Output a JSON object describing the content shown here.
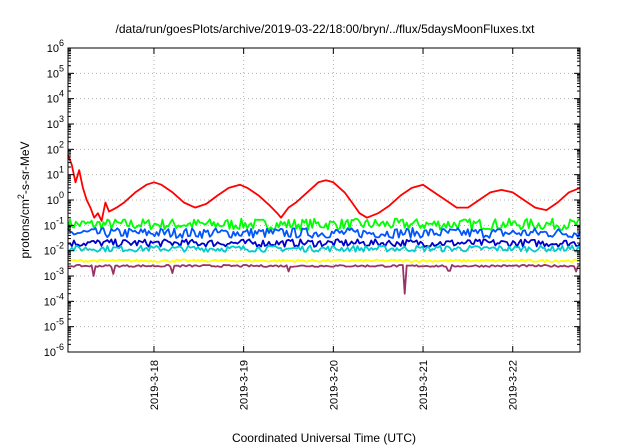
{
  "chart_data": {
    "type": "line",
    "title": "/data/run/goesPlots/archive/2019-03-22/18:00/bryn/../flux/5daysMoonFluxes.txt",
    "xlabel": "Coordinated Universal Time (UTC)",
    "ylabel_parts": {
      "pre": "protons/cm",
      "sup": "2",
      "post": "-s-sr-MeV"
    },
    "y_scale": "log",
    "ylim": [
      1e-06,
      1000000.0
    ],
    "y_ticks": [
      {
        "base": "10",
        "exp": "-6",
        "value": 1e-06
      },
      {
        "base": "10",
        "exp": "-5",
        "value": 1e-05
      },
      {
        "base": "10",
        "exp": "-4",
        "value": 0.0001
      },
      {
        "base": "10",
        "exp": "-3",
        "value": 0.001
      },
      {
        "base": "10",
        "exp": "-2",
        "value": 0.01
      },
      {
        "base": "10",
        "exp": "-1",
        "value": 0.1
      },
      {
        "base": "10",
        "exp": "0",
        "value": 1
      },
      {
        "base": "10",
        "exp": "1",
        "value": 10
      },
      {
        "base": "10",
        "exp": "2",
        "value": 100
      },
      {
        "base": "10",
        "exp": "3",
        "value": 1000
      },
      {
        "base": "10",
        "exp": "4",
        "value": 10000
      },
      {
        "base": "10",
        "exp": "5",
        "value": 100000
      },
      {
        "base": "10",
        "exp": "6",
        "value": 1000000
      }
    ],
    "xlim": [
      "2019-03-17T01:00",
      "2019-03-22T18:00"
    ],
    "x_ticks": [
      {
        "label": "2019-3-18",
        "value": "2019-03-18T00:00"
      },
      {
        "label": "2019-3-19",
        "value": "2019-03-19T00:00"
      },
      {
        "label": "2019-3-20",
        "value": "2019-03-20T00:00"
      },
      {
        "label": "2019-3-21",
        "value": "2019-03-21T00:00"
      },
      {
        "label": "2019-3-22",
        "value": "2019-03-22T00:00"
      }
    ],
    "grid": true,
    "series": [
      {
        "color": "#ff0000",
        "points": [
          [
            "2019-03-17T01:00",
            60
          ],
          [
            "2019-03-17T02:00",
            25
          ],
          [
            "2019-03-17T03:00",
            5
          ],
          [
            "2019-03-17T04:00",
            15
          ],
          [
            "2019-03-17T05:00",
            3
          ],
          [
            "2019-03-17T06:00",
            1
          ],
          [
            "2019-03-17T07:00",
            0.5
          ],
          [
            "2019-03-17T08:00",
            0.2
          ],
          [
            "2019-03-17T09:00",
            0.3
          ],
          [
            "2019-03-17T10:00",
            0.15
          ],
          [
            "2019-03-17T11:00",
            0.8
          ],
          [
            "2019-03-17T12:00",
            0.35
          ],
          [
            "2019-03-17T14:00",
            0.5
          ],
          [
            "2019-03-17T16:00",
            0.8
          ],
          [
            "2019-03-17T19:00",
            2
          ],
          [
            "2019-03-17T22:00",
            4
          ],
          [
            "2019-03-18T00:00",
            5
          ],
          [
            "2019-03-18T02:00",
            4
          ],
          [
            "2019-03-18T05:00",
            2
          ],
          [
            "2019-03-18T08:00",
            0.8
          ],
          [
            "2019-03-18T11:00",
            0.5
          ],
          [
            "2019-03-18T14:00",
            0.7
          ],
          [
            "2019-03-18T17:00",
            1.5
          ],
          [
            "2019-03-18T20:00",
            3
          ],
          [
            "2019-03-18T23:00",
            4
          ],
          [
            "2019-03-19T01:00",
            3
          ],
          [
            "2019-03-19T04:00",
            1.5
          ],
          [
            "2019-03-19T07:00",
            0.6
          ],
          [
            "2019-03-19T09:00",
            0.3
          ],
          [
            "2019-03-19T10:00",
            0.2
          ],
          [
            "2019-03-19T12:00",
            0.5
          ],
          [
            "2019-03-19T14:00",
            0.8
          ],
          [
            "2019-03-19T17:00",
            2
          ],
          [
            "2019-03-19T20:00",
            5
          ],
          [
            "2019-03-19T22:00",
            6
          ],
          [
            "2019-03-20T00:00",
            5
          ],
          [
            "2019-03-20T03:00",
            2
          ],
          [
            "2019-03-20T05:00",
            0.8
          ],
          [
            "2019-03-20T07:00",
            0.3
          ],
          [
            "2019-03-20T09:00",
            0.2
          ],
          [
            "2019-03-20T12:00",
            0.3
          ],
          [
            "2019-03-20T15:00",
            0.6
          ],
          [
            "2019-03-20T18:00",
            1.5
          ],
          [
            "2019-03-20T21:00",
            3
          ],
          [
            "2019-03-21T00:00",
            4
          ],
          [
            "2019-03-21T03:00",
            2
          ],
          [
            "2019-03-21T06:00",
            1
          ],
          [
            "2019-03-21T09:00",
            0.5
          ],
          [
            "2019-03-21T12:00",
            0.5
          ],
          [
            "2019-03-21T15:00",
            1
          ],
          [
            "2019-03-21T18:00",
            2
          ],
          [
            "2019-03-21T21:00",
            2.5
          ],
          [
            "2019-03-22T00:00",
            2
          ],
          [
            "2019-03-22T03:00",
            1
          ],
          [
            "2019-03-22T06:00",
            0.5
          ],
          [
            "2019-03-22T09:00",
            0.4
          ],
          [
            "2019-03-22T12:00",
            0.8
          ],
          [
            "2019-03-22T15:00",
            2
          ],
          [
            "2019-03-22T18:00",
            3
          ]
        ]
      },
      {
        "color": "#00ff00",
        "base": 0.11,
        "amp": 0.45
      },
      {
        "color": "#0055ff",
        "base": 0.05,
        "amp": 0.4
      },
      {
        "color": "#0000cc",
        "base": 0.02,
        "amp": 0.3
      },
      {
        "color": "#00cccc",
        "base": 0.012,
        "amp": 0.25
      },
      {
        "color": "#ffff00",
        "base": 0.004,
        "amp": 0.1
      },
      {
        "color": "#993366",
        "base": 0.0025,
        "amp": 0.08,
        "dips": [
          [
            "2019-03-17T08:00",
            0.001
          ],
          [
            "2019-03-17T13:00",
            0.0012
          ],
          [
            "2019-03-18T05:00",
            0.0013
          ],
          [
            "2019-03-19T12:00",
            0.0015
          ],
          [
            "2019-03-20T19:00",
            0.0002
          ],
          [
            "2019-03-21T07:00",
            0.0016
          ],
          [
            "2019-03-22T17:00",
            0.0015
          ]
        ]
      }
    ]
  }
}
